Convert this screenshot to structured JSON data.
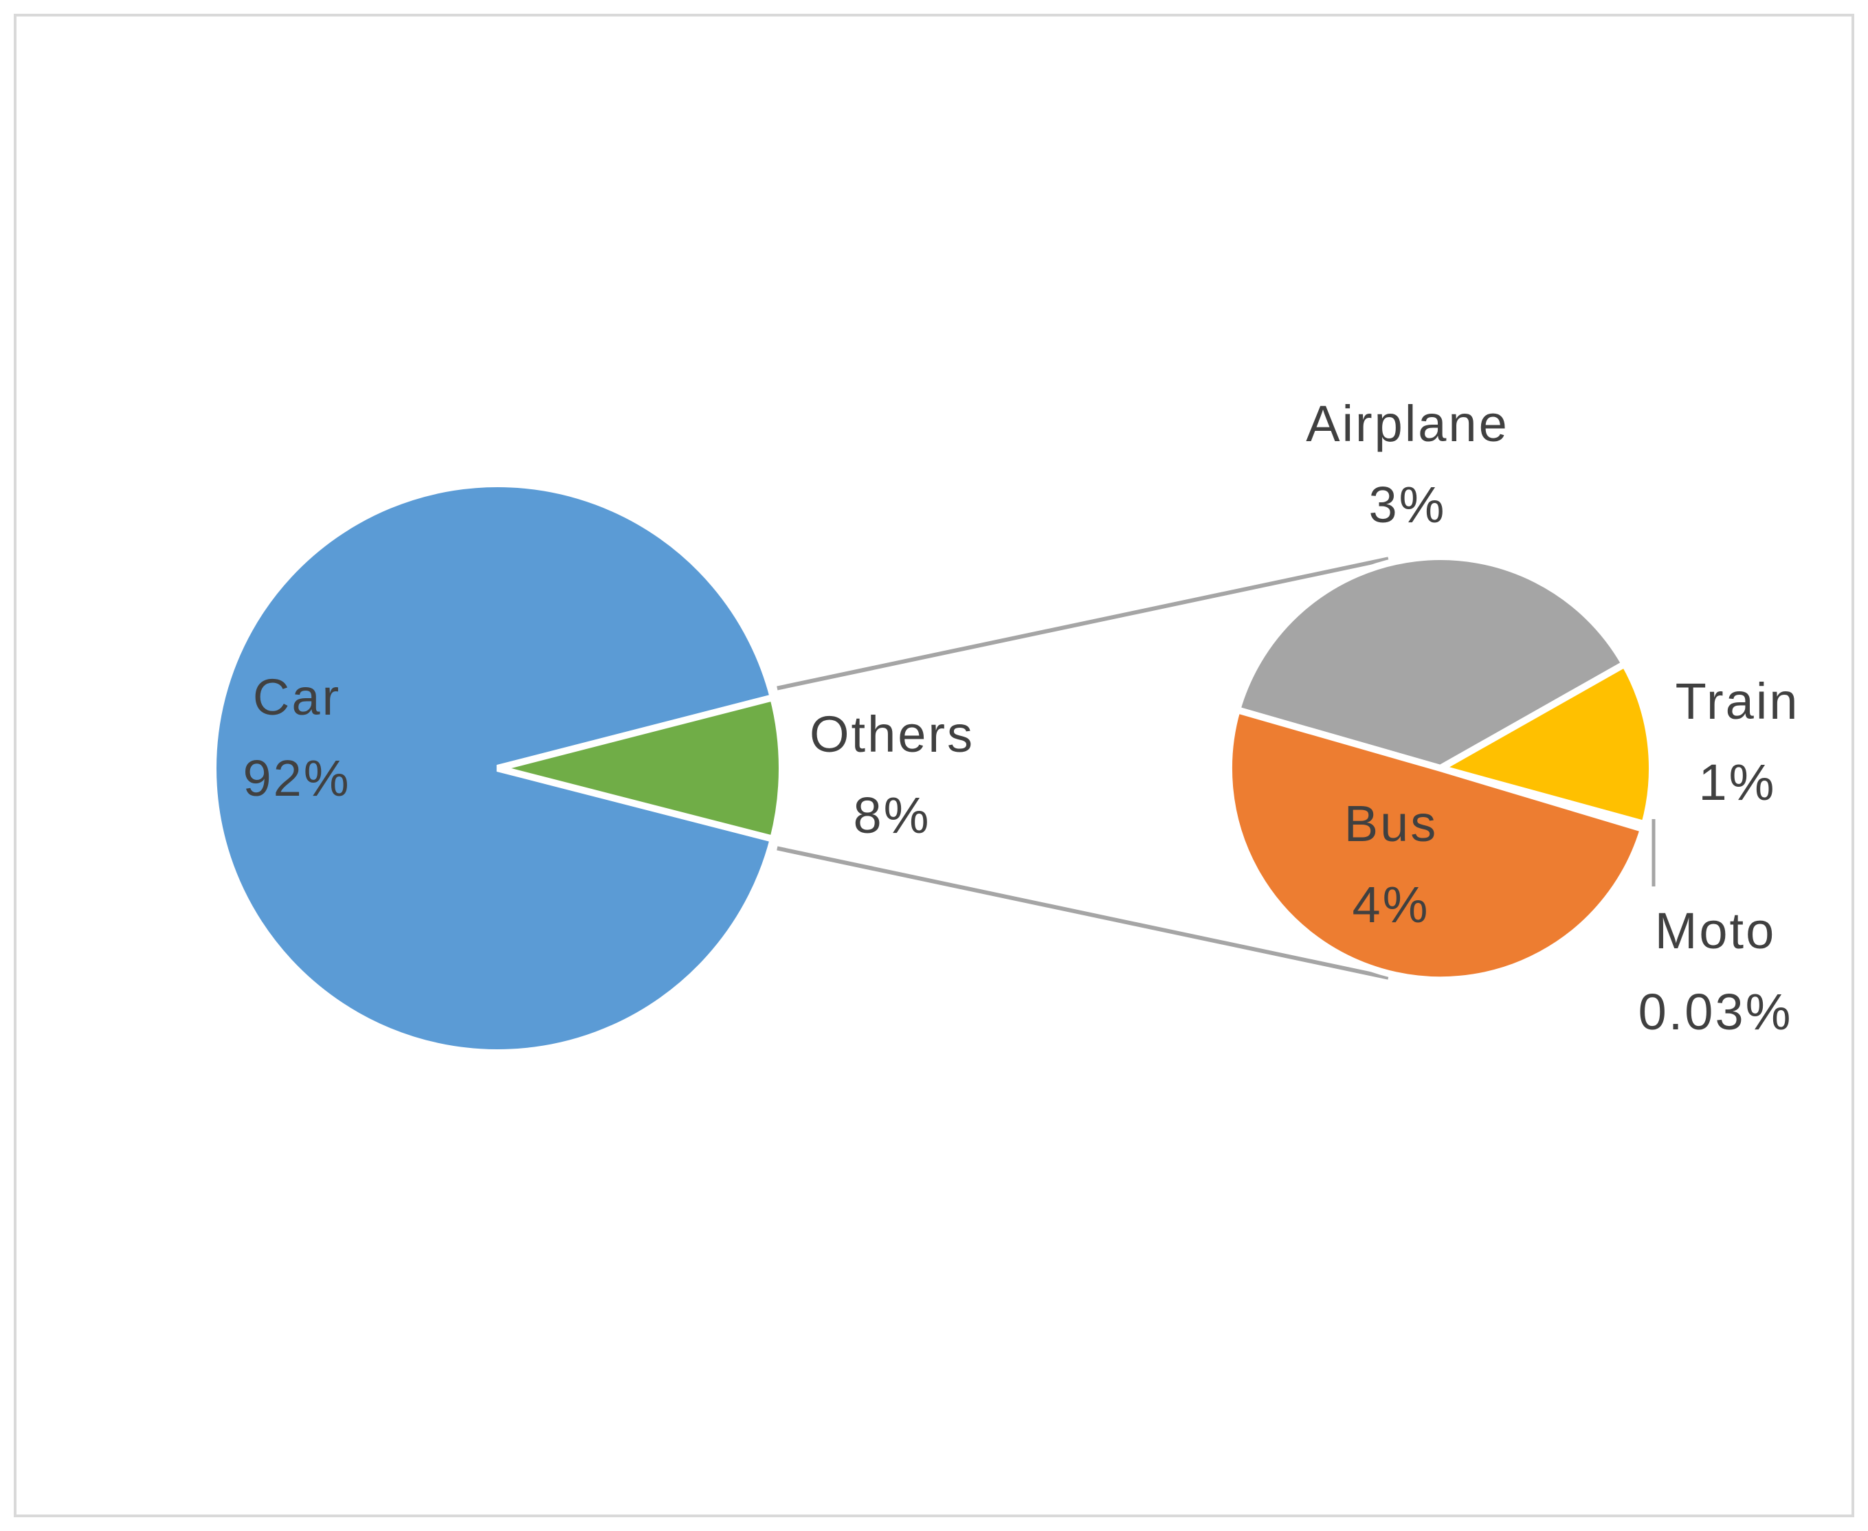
{
  "chart_data": {
    "type": "pie",
    "subtype": "pie-of-pie",
    "title": "",
    "main_pie": {
      "slices": [
        {
          "name": "Car",
          "value": 92,
          "label": "92%",
          "color": "#5B9BD5"
        },
        {
          "name": "Others",
          "value": 8,
          "label": "8%",
          "color": "#70AD47"
        }
      ]
    },
    "secondary_pie": {
      "source": "Others",
      "slices": [
        {
          "name": "Airplane",
          "value": 3,
          "label": "3%",
          "color": "#A5A5A5"
        },
        {
          "name": "Train",
          "value": 1,
          "label": "1%",
          "color": "#FFC000"
        },
        {
          "name": "Moto",
          "value": 0.03,
          "label": "0.03%",
          "color": "#7F7F7F"
        },
        {
          "name": "Bus",
          "value": 4,
          "label": "4%",
          "color": "#ED7D31"
        }
      ]
    },
    "connector_color": "#A5A5A5",
    "border_color": "#D9D9D9",
    "legend": "none"
  }
}
